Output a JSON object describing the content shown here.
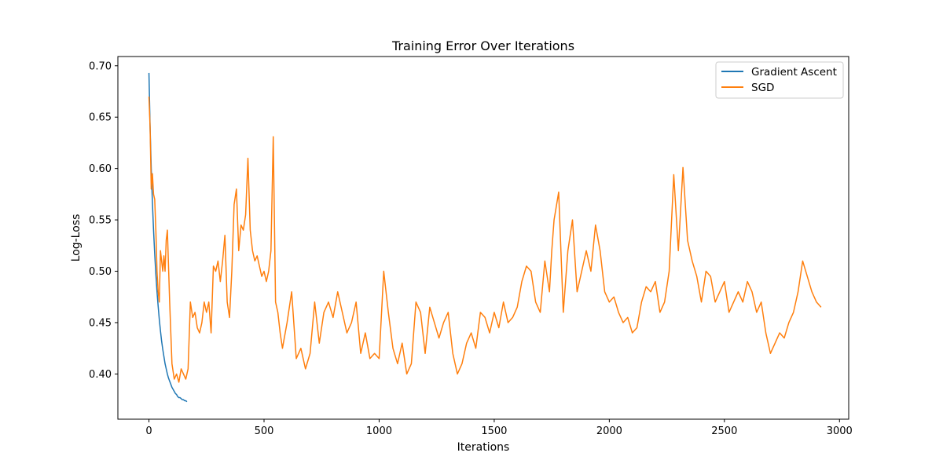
{
  "chart_data": {
    "type": "line",
    "title": "Training Error Over Iterations",
    "xlabel": "Iterations",
    "ylabel": "Log-Loss",
    "xlim": [
      -135,
      3040
    ],
    "ylim": [
      0.356,
      0.709
    ],
    "xticks": [
      0,
      500,
      1000,
      1500,
      2000,
      2500,
      3000
    ],
    "yticks": [
      0.4,
      0.45,
      0.5,
      0.55,
      0.6,
      0.65,
      0.7
    ],
    "xtick_labels": [
      "0",
      "500",
      "1000",
      "1500",
      "2000",
      "2500",
      "3000"
    ],
    "ytick_labels": [
      "0.40",
      "0.45",
      "0.50",
      "0.55",
      "0.60",
      "0.65",
      "0.70"
    ],
    "grid": false,
    "legend_position": "top-right",
    "series": [
      {
        "name": "Gradient Ascent",
        "color": "#1f77b4",
        "x": [
          0,
          5,
          10,
          15,
          20,
          25,
          30,
          35,
          40,
          45,
          50,
          55,
          60,
          65,
          70,
          75,
          80,
          85,
          90,
          95,
          100,
          105,
          110,
          115,
          120,
          125,
          130,
          135,
          140,
          145,
          150,
          155,
          160,
          165
        ],
        "y": [
          0.693,
          0.64,
          0.6,
          0.567,
          0.54,
          0.517,
          0.497,
          0.48,
          0.466,
          0.453,
          0.442,
          0.432,
          0.424,
          0.417,
          0.41,
          0.405,
          0.4,
          0.396,
          0.393,
          0.39,
          0.387,
          0.385,
          0.383,
          0.381,
          0.38,
          0.378,
          0.377,
          0.377,
          0.376,
          0.375,
          0.375,
          0.374,
          0.374,
          0.373
        ]
      },
      {
        "name": "SGD",
        "color": "#ff7f0e",
        "x": [
          0,
          5,
          10,
          15,
          20,
          25,
          30,
          35,
          40,
          45,
          50,
          55,
          60,
          65,
          70,
          75,
          80,
          90,
          100,
          110,
          120,
          130,
          140,
          150,
          160,
          170,
          180,
          190,
          200,
          210,
          220,
          230,
          240,
          250,
          260,
          270,
          280,
          290,
          300,
          310,
          320,
          330,
          340,
          350,
          360,
          370,
          380,
          390,
          400,
          410,
          420,
          430,
          440,
          450,
          460,
          470,
          480,
          490,
          500,
          510,
          520,
          530,
          540,
          550,
          560,
          570,
          580,
          600,
          620,
          640,
          660,
          680,
          700,
          720,
          740,
          760,
          780,
          800,
          820,
          840,
          860,
          880,
          900,
          920,
          940,
          960,
          980,
          1000,
          1020,
          1040,
          1060,
          1080,
          1100,
          1120,
          1140,
          1160,
          1180,
          1200,
          1220,
          1240,
          1260,
          1280,
          1300,
          1320,
          1340,
          1360,
          1380,
          1400,
          1420,
          1440,
          1460,
          1480,
          1500,
          1520,
          1540,
          1560,
          1580,
          1600,
          1620,
          1640,
          1660,
          1680,
          1700,
          1720,
          1740,
          1750,
          1760,
          1780,
          1800,
          1820,
          1840,
          1860,
          1880,
          1900,
          1920,
          1940,
          1960,
          1980,
          2000,
          2020,
          2040,
          2060,
          2080,
          2100,
          2120,
          2140,
          2160,
          2180,
          2200,
          2220,
          2240,
          2260,
          2280,
          2300,
          2320,
          2340,
          2360,
          2380,
          2400,
          2420,
          2440,
          2460,
          2480,
          2500,
          2520,
          2540,
          2560,
          2580,
          2600,
          2620,
          2640,
          2660,
          2680,
          2700,
          2720,
          2740,
          2760,
          2780,
          2800,
          2820,
          2840,
          2860,
          2880,
          2900,
          2920
        ],
        "y": [
          0.67,
          0.64,
          0.58,
          0.595,
          0.575,
          0.57,
          0.54,
          0.5,
          0.48,
          0.47,
          0.52,
          0.51,
          0.5,
          0.515,
          0.5,
          0.53,
          0.54,
          0.47,
          0.41,
          0.395,
          0.4,
          0.392,
          0.405,
          0.4,
          0.395,
          0.405,
          0.47,
          0.455,
          0.46,
          0.445,
          0.44,
          0.45,
          0.47,
          0.46,
          0.47,
          0.44,
          0.505,
          0.5,
          0.51,
          0.49,
          0.51,
          0.535,
          0.47,
          0.455,
          0.5,
          0.565,
          0.58,
          0.52,
          0.545,
          0.54,
          0.555,
          0.61,
          0.54,
          0.52,
          0.51,
          0.515,
          0.505,
          0.495,
          0.5,
          0.49,
          0.5,
          0.52,
          0.631,
          0.47,
          0.46,
          0.44,
          0.425,
          0.45,
          0.48,
          0.415,
          0.425,
          0.405,
          0.42,
          0.47,
          0.43,
          0.46,
          0.47,
          0.455,
          0.48,
          0.46,
          0.44,
          0.45,
          0.47,
          0.42,
          0.44,
          0.415,
          0.42,
          0.415,
          0.5,
          0.46,
          0.425,
          0.41,
          0.43,
          0.4,
          0.41,
          0.47,
          0.46,
          0.42,
          0.465,
          0.45,
          0.435,
          0.45,
          0.46,
          0.42,
          0.4,
          0.41,
          0.43,
          0.44,
          0.425,
          0.46,
          0.455,
          0.44,
          0.46,
          0.445,
          0.47,
          0.45,
          0.455,
          0.465,
          0.49,
          0.505,
          0.5,
          0.47,
          0.46,
          0.51,
          0.48,
          0.52,
          0.55,
          0.577,
          0.46,
          0.52,
          0.55,
          0.48,
          0.5,
          0.52,
          0.5,
          0.545,
          0.52,
          0.48,
          0.47,
          0.475,
          0.46,
          0.45,
          0.455,
          0.44,
          0.445,
          0.47,
          0.485,
          0.48,
          0.49,
          0.46,
          0.47,
          0.5,
          0.594,
          0.52,
          0.601,
          0.53,
          0.51,
          0.495,
          0.47,
          0.5,
          0.495,
          0.47,
          0.48,
          0.49,
          0.46,
          0.47,
          0.48,
          0.47,
          0.49,
          0.48,
          0.46,
          0.47,
          0.44,
          0.42,
          0.43,
          0.44,
          0.435,
          0.45,
          0.46,
          0.48,
          0.51,
          0.495,
          0.48,
          0.47,
          0.465
        ]
      }
    ]
  }
}
